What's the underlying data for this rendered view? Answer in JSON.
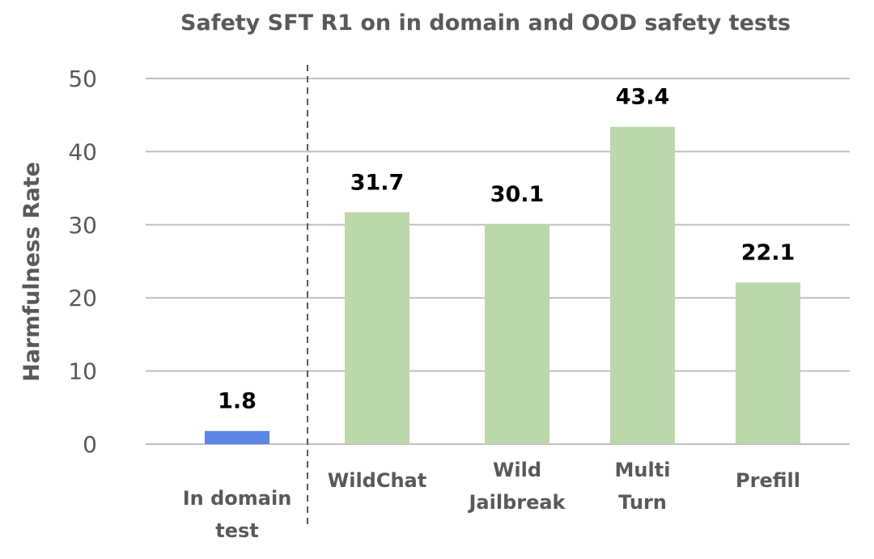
{
  "chart_data": {
    "type": "bar",
    "title": "Safety SFT R1 on in domain and OOD safety tests",
    "ylabel": "Harmfulness Rate",
    "xlabel": "",
    "ylim": [
      0,
      50
    ],
    "yticks": [
      0,
      10,
      20,
      30,
      40,
      50
    ],
    "grid": true,
    "categories": [
      [
        "In domain",
        "test"
      ],
      [
        "WildChat"
      ],
      [
        "Wild",
        "Jailbreak"
      ],
      [
        "Multi",
        "Turn"
      ],
      [
        "Prefill"
      ]
    ],
    "values": [
      1.8,
      31.7,
      30.1,
      43.4,
      22.1
    ],
    "data_labels": [
      "1.8",
      "31.7",
      "30.1",
      "43.4",
      "22.1"
    ],
    "colors": [
      "#5b86e5",
      "#bcd7aa",
      "#bcd7aa",
      "#bcd7aa",
      "#bcd7aa"
    ],
    "separator": "dashed vertical line between In domain test and WildChat"
  }
}
